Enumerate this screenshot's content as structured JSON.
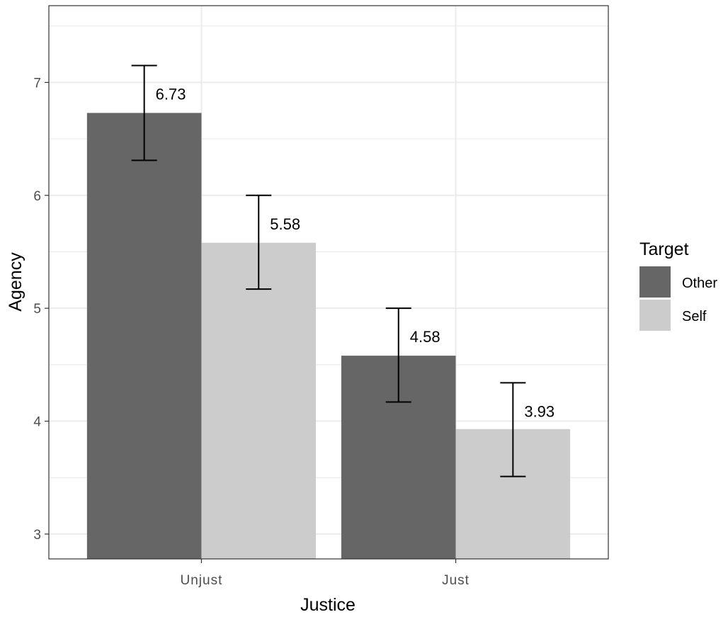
{
  "chart_data": {
    "type": "bar",
    "title": "",
    "xlabel": "Justice",
    "ylabel": "Agency",
    "categories": [
      "Unjust",
      "Just"
    ],
    "series": [
      {
        "name": "Other",
        "values": [
          6.73,
          4.58
        ],
        "error_low": [
          6.31,
          4.17
        ],
        "error_high": [
          7.15,
          5.0
        ],
        "color": "#666666"
      },
      {
        "name": "Self",
        "values": [
          5.58,
          3.93
        ],
        "error_low": [
          5.17,
          3.51
        ],
        "error_high": [
          6.0,
          4.34
        ],
        "color": "#cccccc"
      }
    ],
    "data_labels": [
      [
        "6.73",
        "4.58"
      ],
      [
        "5.58",
        "3.93"
      ]
    ],
    "y_ticks": [
      "3",
      "4",
      "5",
      "6",
      "7"
    ],
    "ylim": [
      2.78,
      7.68
    ],
    "grid": true,
    "legend": {
      "title": "Target",
      "position": "right"
    }
  }
}
